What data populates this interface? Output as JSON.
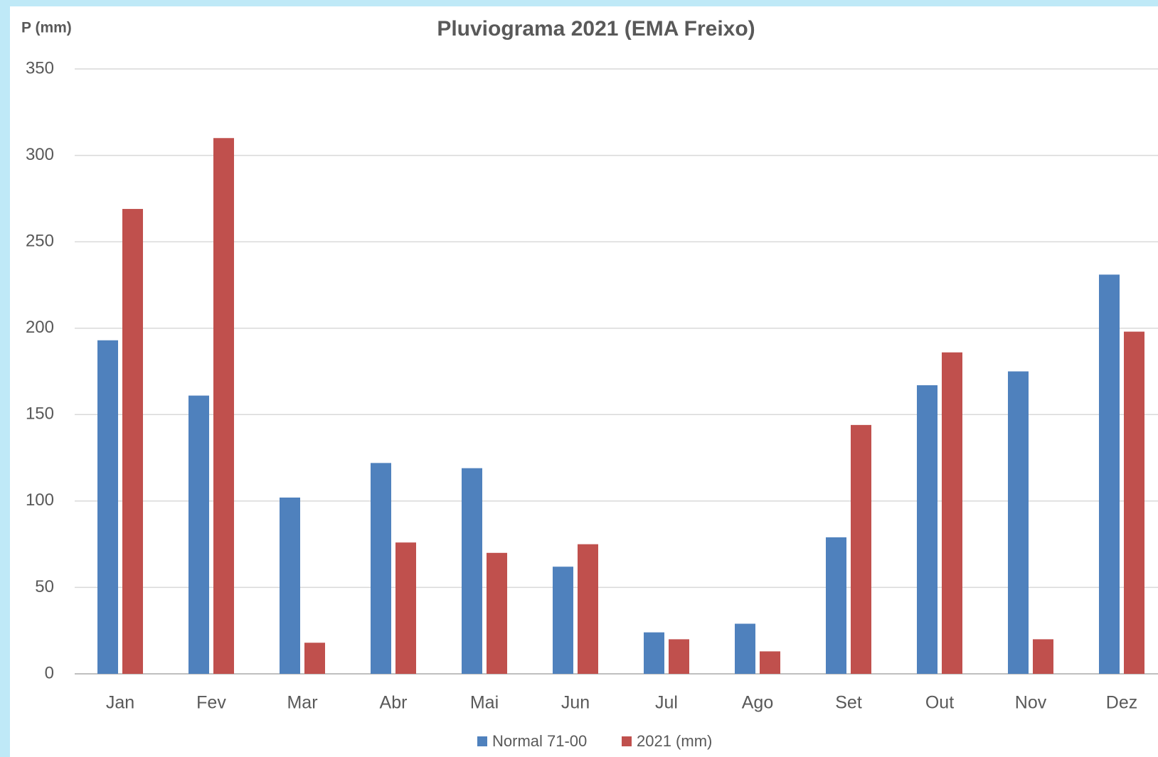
{
  "chart_data": {
    "type": "bar",
    "title": "Pluviograma 2021 (EMA Freixo)",
    "y_label": "P (mm)",
    "categories": [
      "Jan",
      "Fev",
      "Mar",
      "Abr",
      "Mai",
      "Jun",
      "Jul",
      "Ago",
      "Set",
      "Out",
      "Nov",
      "Dez"
    ],
    "series": [
      {
        "name": "Normal 71-00",
        "color": "#4f81bd",
        "values": [
          193,
          161,
          102,
          122,
          119,
          62,
          24,
          29,
          79,
          167,
          175,
          231
        ]
      },
      {
        "name": "2021 (mm)",
        "color": "#c0504d",
        "values": [
          269,
          310,
          18,
          76,
          70,
          75,
          20,
          13,
          144,
          186,
          20,
          198
        ]
      }
    ],
    "ylim": [
      0,
      350
    ],
    "yticks": [
      0,
      50,
      100,
      150,
      200,
      250,
      300,
      350
    ],
    "grid": true,
    "legend": "bottom"
  }
}
